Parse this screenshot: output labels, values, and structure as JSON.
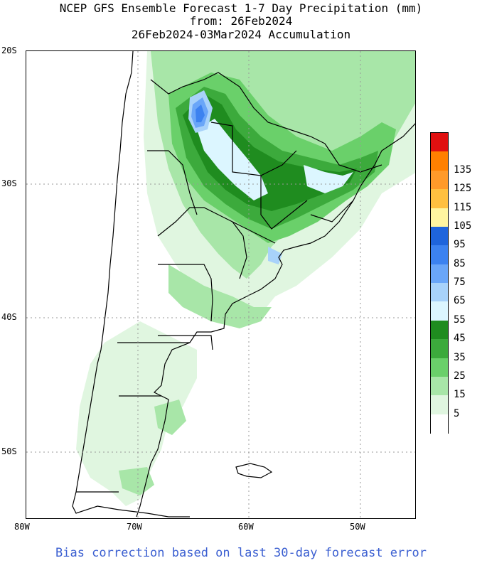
{
  "title": {
    "line1": "NCEP GFS Ensemble Forecast 1-7 Day Precipitation (mm)",
    "line2": "from: 26Feb2024",
    "line3": "26Feb2024-03Mar2024 Accumulation"
  },
  "axes": {
    "lat_labels": [
      "20S",
      "30S",
      "40S",
      "50S"
    ],
    "lon_labels": [
      "80W",
      "70W",
      "60W",
      "50W"
    ]
  },
  "legend": {
    "levels": [
      {
        "label": "135",
        "color": "#ff8000"
      },
      {
        "label": "125",
        "color": "#ff9a2a"
      },
      {
        "label": "115",
        "color": "#ffc040"
      },
      {
        "label": "105",
        "color": "#fff5a0"
      },
      {
        "label": "95",
        "color": "#1e64dc"
      },
      {
        "label": "85",
        "color": "#3c82f0"
      },
      {
        "label": "75",
        "color": "#6aa6f8"
      },
      {
        "label": "65",
        "color": "#a8d2fa"
      },
      {
        "label": "55",
        "color": "#dcf6ff"
      },
      {
        "label": "45",
        "color": "#1f8c1f"
      },
      {
        "label": "35",
        "color": "#3caa3c"
      },
      {
        "label": "25",
        "color": "#6ad06a"
      },
      {
        "label": "15",
        "color": "#a8e6a8"
      },
      {
        "label": "5",
        "color": "#e0f6e0"
      }
    ],
    "top_color": "#e01010",
    "bottom_color": "#ffffff"
  },
  "footer": "Bias correction based on last 30-day forecast error"
}
